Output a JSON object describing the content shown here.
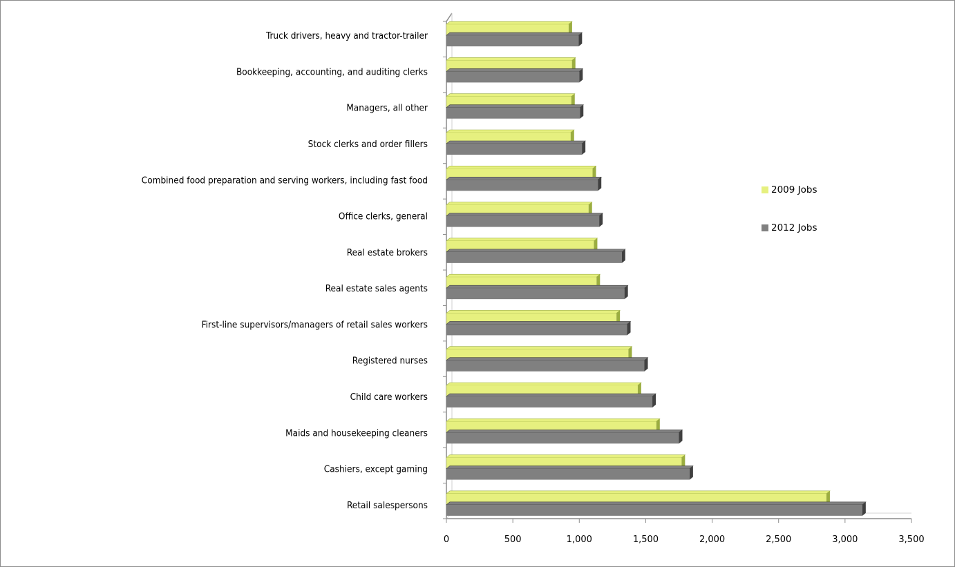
{
  "chart_data": {
    "type": "bar",
    "orientation": "horizontal",
    "style": "3d-clustered",
    "categories": [
      "Retail salespersons",
      "Cashiers, except gaming",
      "Maids and housekeeping cleaners",
      "Child care workers",
      "Registered nurses",
      "First-line supervisors/managers of retail sales workers",
      "Real estate sales agents",
      "Real estate brokers",
      "Office clerks, general",
      "Combined food preparation and serving workers, including fast food",
      "Stock clerks and order fillers",
      "Managers, all other",
      "Bookkeeping, accounting, and auditing clerks",
      "Truck drivers, heavy and tractor-trailer"
    ],
    "series": [
      {
        "name": "2009 Jobs",
        "color": "#e6f07f",
        "edge_color": "#9bad40",
        "values": [
          2860,
          1770,
          1580,
          1440,
          1370,
          1280,
          1130,
          1110,
          1070,
          1100,
          935,
          940,
          945,
          920
        ]
      },
      {
        "name": "2012 Jobs",
        "color": "#808080",
        "edge_color": "#404040",
        "values": [
          3130,
          1830,
          1750,
          1550,
          1490,
          1360,
          1340,
          1320,
          1150,
          1140,
          1020,
          1005,
          1000,
          995
        ]
      }
    ],
    "xlim": [
      0,
      3500
    ],
    "xticks": [
      "0",
      "500",
      "1,000",
      "1,500",
      "2,000",
      "2,500",
      "3,000",
      "3,500"
    ],
    "xticks_values": [
      0,
      500,
      1000,
      1500,
      2000,
      2500,
      3000,
      3500
    ],
    "grid": false,
    "legend_position": "right"
  }
}
